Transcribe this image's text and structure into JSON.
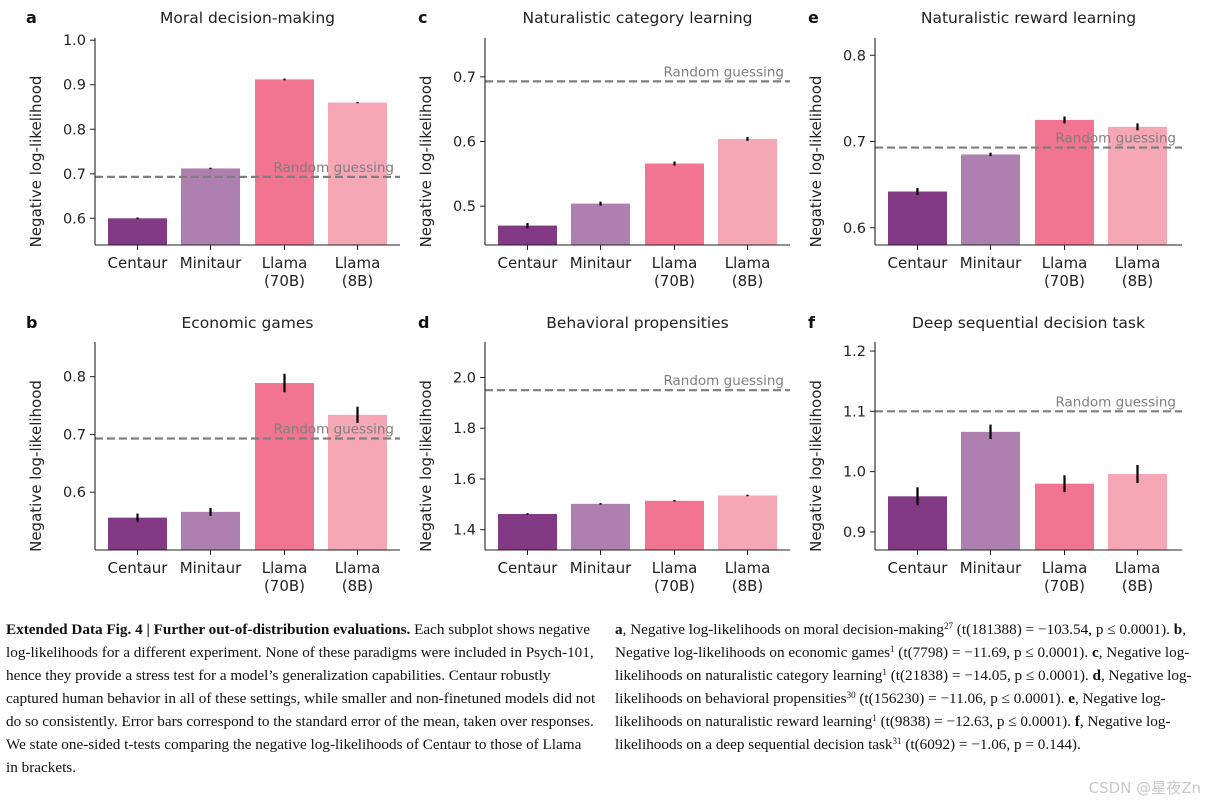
{
  "chart_data": [
    {
      "panel": "a",
      "type": "bar",
      "title": "Moral decision-making",
      "ylabel": "Negative log-likelihood",
      "categories": [
        "Centaur",
        "Minitaur",
        "Llama\n(70B)",
        "Llama\n(8B)"
      ],
      "values": [
        0.6,
        0.712,
        0.912,
        0.86
      ],
      "errors": [
        0.0015,
        0.001,
        0.002,
        0.0015
      ],
      "colors": [
        "#813a83",
        "#ae80b0",
        "#f17490",
        "#f5a7b5"
      ],
      "yticks": [
        0.6,
        0.7,
        0.8,
        0.9,
        1.0
      ],
      "ytick_labels": [
        "0.6",
        "0.7",
        "0.8",
        "0.9",
        "1.0"
      ],
      "ylim": [
        0.54,
        1.005
      ],
      "reference": {
        "label": "Random guessing",
        "value": 0.693
      }
    },
    {
      "panel": "b",
      "type": "bar",
      "title": "Economic games",
      "ylabel": "Negative log-likelihood",
      "categories": [
        "Centaur",
        "Minitaur",
        "Llama\n(70B)",
        "Llama\n(8B)"
      ],
      "values": [
        0.556,
        0.566,
        0.789,
        0.734
      ],
      "errors": [
        0.007,
        0.007,
        0.016,
        0.014
      ],
      "colors": [
        "#813a83",
        "#ae80b0",
        "#f17490",
        "#f5a7b5"
      ],
      "yticks": [
        0.6,
        0.7,
        0.8
      ],
      "ytick_labels": [
        "0.6",
        "0.7",
        "0.8"
      ],
      "ylim": [
        0.5,
        0.86
      ],
      "reference": {
        "label": "Random guessing",
        "value": 0.693
      }
    },
    {
      "panel": "c",
      "type": "bar",
      "title": "Naturalistic category learning",
      "ylabel": "Negative log-likelihood",
      "categories": [
        "Centaur",
        "Minitaur",
        "Llama\n(70B)",
        "Llama\n(8B)"
      ],
      "values": [
        0.47,
        0.504,
        0.566,
        0.604
      ],
      "errors": [
        0.004,
        0.003,
        0.003,
        0.003
      ],
      "colors": [
        "#813a83",
        "#ae80b0",
        "#f17490",
        "#f5a7b5"
      ],
      "yticks": [
        0.5,
        0.6,
        0.7
      ],
      "ytick_labels": [
        "0.5",
        "0.6",
        "0.7"
      ],
      "ylim": [
        0.44,
        0.76
      ],
      "reference": {
        "label": "Random guessing",
        "value": 0.693
      }
    },
    {
      "panel": "d",
      "type": "bar",
      "title": "Behavioral propensities",
      "ylabel": "Negative log-likelihood",
      "categories": [
        "Centaur",
        "Minitaur",
        "Llama\n(70B)",
        "Llama\n(8B)"
      ],
      "values": [
        1.462,
        1.502,
        1.514,
        1.535
      ],
      "errors": [
        0.002,
        0.002,
        0.002,
        0.002
      ],
      "colors": [
        "#813a83",
        "#ae80b0",
        "#f17490",
        "#f5a7b5"
      ],
      "yticks": [
        1.4,
        1.6,
        1.8,
        2.0
      ],
      "ytick_labels": [
        "1.4",
        "1.6",
        "1.8",
        "2.0"
      ],
      "ylim": [
        1.32,
        2.14
      ],
      "reference": {
        "label": "Random guessing",
        "value": 1.95
      }
    },
    {
      "panel": "e",
      "type": "bar",
      "title": "Naturalistic reward learning",
      "ylabel": "Negative log-likelihood",
      "categories": [
        "Centaur",
        "Minitaur",
        "Llama\n(70B)",
        "Llama\n(8B)"
      ],
      "values": [
        0.642,
        0.685,
        0.725,
        0.717
      ],
      "errors": [
        0.004,
        0.002,
        0.004,
        0.004
      ],
      "colors": [
        "#813a83",
        "#ae80b0",
        "#f17490",
        "#f5a7b5"
      ],
      "yticks": [
        0.6,
        0.7,
        0.8
      ],
      "ytick_labels": [
        "0.6",
        "0.7",
        "0.8"
      ],
      "ylim": [
        0.58,
        0.82
      ],
      "reference": {
        "label": "Random guessing",
        "value": 0.693
      }
    },
    {
      "panel": "f",
      "type": "bar",
      "title": "Deep sequential decision task",
      "ylabel": "Negative log-likelihood",
      "categories": [
        "Centaur",
        "Minitaur",
        "Llama\n(70B)",
        "Llama\n(8B)"
      ],
      "values": [
        0.959,
        1.066,
        0.98,
        0.996
      ],
      "errors": [
        0.015,
        0.012,
        0.014,
        0.015
      ],
      "colors": [
        "#813a83",
        "#ae80b0",
        "#f17490",
        "#f5a7b5"
      ],
      "yticks": [
        0.9,
        1.0,
        1.1,
        1.2
      ],
      "ytick_labels": [
        "0.9",
        "1.0",
        "1.1",
        "1.2"
      ],
      "ylim": [
        0.87,
        1.215
      ],
      "reference": {
        "label": "Random guessing",
        "value": 1.1
      }
    }
  ],
  "caption": {
    "title": "Extended Data Fig. 4 | Further out-of-distribution evaluations.",
    "body": "Each subplot shows negative log-likelihoods for a different experiment. None of these paradigms were included in Psych-101, hence they provide a stress test for a model’s generalization capabilities. Centaur robustly captured human behavior in all of these settings, while smaller and non-finetuned models did not do so consistently. Error bars correspond to the standard error of the mean, taken over responses. We state one-sided t-tests comparing the negative log-likelihoods of Centaur to those of Llama in brackets.",
    "items": [
      {
        "letter": "a",
        "text": ", Negative log-likelihoods on moral decision-making",
        "ref": "27",
        "stat": " (t(181388) = −103.54, p ≤ 0.0001). "
      },
      {
        "letter": "b",
        "text": ", Negative log-likelihoods on economic games",
        "ref": "1",
        "stat": " (t(7798) = −11.69, p ≤ 0.0001). "
      },
      {
        "letter": "c",
        "text": ", Negative log-likelihoods on naturalistic category learning",
        "ref": "1",
        "stat": " (t(21838) = −14.05, p ≤ 0.0001). "
      },
      {
        "letter": "d",
        "text": ", Negative log-likelihoods on behavioral propensities",
        "ref": "30",
        "stat": " (t(156230) = −11.06, p ≤ 0.0001). "
      },
      {
        "letter": "e",
        "text": ", Negative log-likelihoods on naturalistic reward learning",
        "ref": "1",
        "stat": " (t(9838) = −12.63, p ≤ 0.0001). "
      },
      {
        "letter": "f",
        "text": ", Negative log-likelihoods on a deep sequential decision task",
        "ref": "31",
        "stat": " (t(6092) = −1.06, p = 0.144)."
      }
    ]
  },
  "watermark": "CSDN @星夜Zn"
}
